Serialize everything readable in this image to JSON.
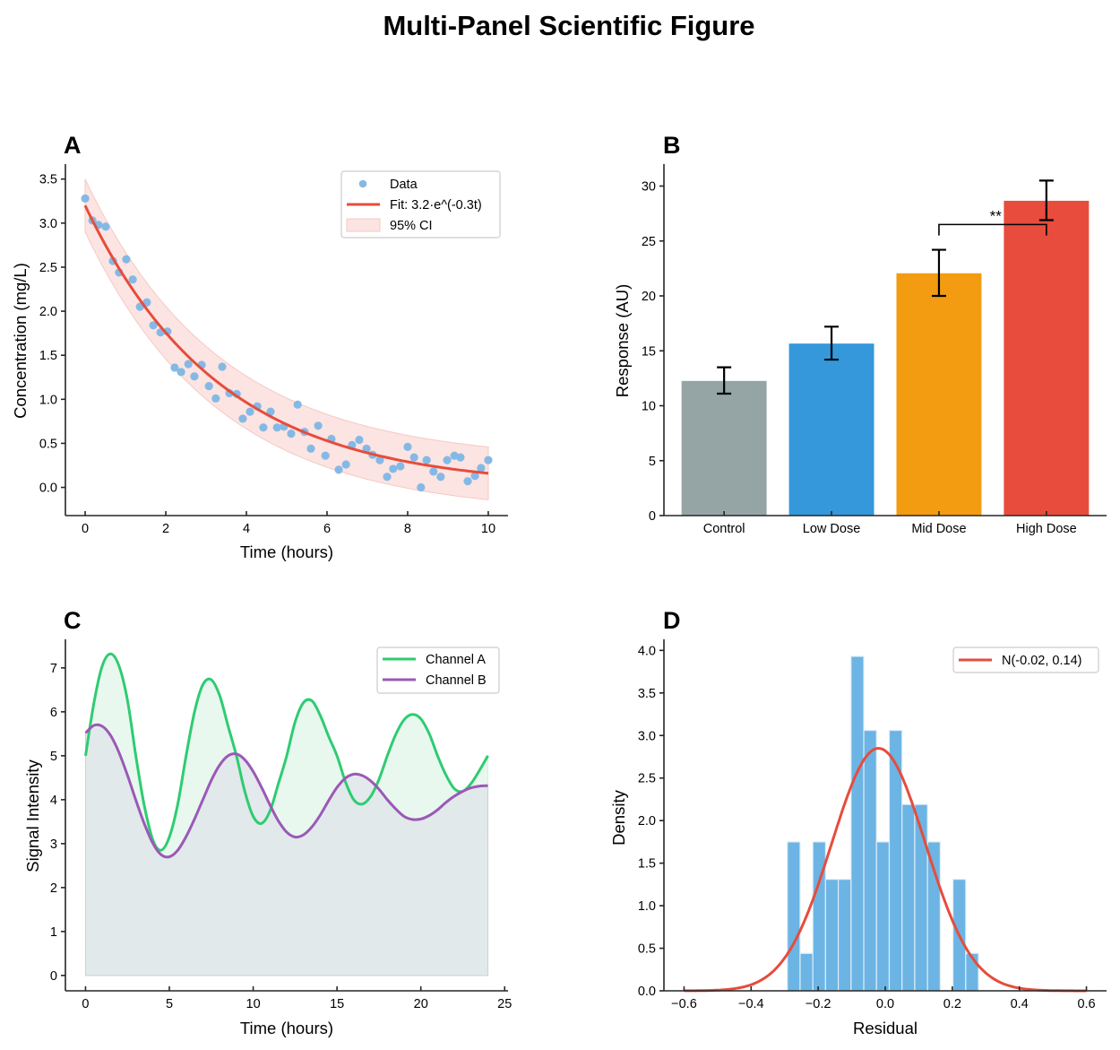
{
  "figure": {
    "suptitle": "Multi-Panel Scientific Figure"
  },
  "chart_data": [
    {
      "panel": "A",
      "type": "scatter",
      "title": "A",
      "xlabel": "Time (hours)",
      "ylabel": "Concentration (mg/L)",
      "xlim": [
        -0.49,
        10.49
      ],
      "ylim": [
        -0.32,
        3.67
      ],
      "xticks": [
        0,
        2,
        4,
        6,
        8,
        10
      ],
      "xtick_labels": [
        "0",
        "2",
        "4",
        "6",
        "8",
        "10"
      ],
      "yticks": [
        0.0,
        0.5,
        1.0,
        1.5,
        2.0,
        2.5,
        3.0,
        3.5
      ],
      "ytick_labels": [
        "0.0",
        "0.5",
        "1.0",
        "1.5",
        "2.0",
        "2.5",
        "3.0",
        "3.5"
      ],
      "grid": false,
      "legend": {
        "placement": "upper-right",
        "entries": [
          "Data",
          "Fit: 3.2·e^(-0.3t)",
          "95% CI"
        ]
      },
      "colors": {
        "data": "#85b9e5",
        "fit": "#e74c3c",
        "ci": "#fbe4e2"
      },
      "fit": {
        "a": 3.2,
        "k": 0.3,
        "x_range": [
          0,
          10
        ]
      },
      "ci_half_width": 0.3,
      "points": [
        [
          0.0,
          3.28
        ],
        [
          0.18,
          3.03
        ],
        [
          0.33,
          2.98
        ],
        [
          0.51,
          2.96
        ],
        [
          0.69,
          2.57
        ],
        [
          0.84,
          2.44
        ],
        [
          1.02,
          2.59
        ],
        [
          1.18,
          2.36
        ],
        [
          1.36,
          2.05
        ],
        [
          1.53,
          2.1
        ],
        [
          1.69,
          1.84
        ],
        [
          1.87,
          1.76
        ],
        [
          2.04,
          1.77
        ],
        [
          2.22,
          1.36
        ],
        [
          2.38,
          1.31
        ],
        [
          2.56,
          1.4
        ],
        [
          2.71,
          1.26
        ],
        [
          2.89,
          1.39
        ],
        [
          3.07,
          1.15
        ],
        [
          3.24,
          1.01
        ],
        [
          3.4,
          1.37
        ],
        [
          3.58,
          1.07
        ],
        [
          3.76,
          1.06
        ],
        [
          3.91,
          0.78
        ],
        [
          4.09,
          0.86
        ],
        [
          4.27,
          0.92
        ],
        [
          4.42,
          0.68
        ],
        [
          4.6,
          0.86
        ],
        [
          4.76,
          0.68
        ],
        [
          4.93,
          0.69
        ],
        [
          5.11,
          0.61
        ],
        [
          5.27,
          0.94
        ],
        [
          5.44,
          0.63
        ],
        [
          5.6,
          0.44
        ],
        [
          5.78,
          0.7
        ],
        [
          5.96,
          0.36
        ],
        [
          6.11,
          0.55
        ],
        [
          6.29,
          0.2
        ],
        [
          6.47,
          0.26
        ],
        [
          6.62,
          0.48
        ],
        [
          6.8,
          0.54
        ],
        [
          6.98,
          0.44
        ],
        [
          7.13,
          0.37
        ],
        [
          7.31,
          0.31
        ],
        [
          7.49,
          0.12
        ],
        [
          7.64,
          0.21
        ],
        [
          7.82,
          0.24
        ],
        [
          8.0,
          0.46
        ],
        [
          8.16,
          0.34
        ],
        [
          8.33,
          0.0
        ],
        [
          8.47,
          0.31
        ],
        [
          8.64,
          0.18
        ],
        [
          8.82,
          0.12
        ],
        [
          8.98,
          0.31
        ],
        [
          9.16,
          0.36
        ],
        [
          9.31,
          0.34
        ],
        [
          9.49,
          0.07
        ],
        [
          9.67,
          0.13
        ],
        [
          9.82,
          0.22
        ],
        [
          10.0,
          0.31
        ]
      ]
    },
    {
      "panel": "B",
      "type": "bar",
      "title": "B",
      "xlabel": "",
      "ylabel": "Response (AU)",
      "ylim": [
        0,
        32
      ],
      "yticks": [
        0,
        5,
        10,
        15,
        20,
        25,
        30
      ],
      "ytick_labels": [
        "0",
        "5",
        "10",
        "15",
        "20",
        "25",
        "30"
      ],
      "grid": false,
      "categories": [
        "Control",
        "Low Dose",
        "Mid Dose",
        "High Dose"
      ],
      "values": [
        12.3,
        15.7,
        22.1,
        28.7
      ],
      "errors": [
        1.2,
        1.5,
        2.1,
        1.8
      ],
      "colors": [
        "#95a5a6",
        "#3498db",
        "#f39c12",
        "#e74c3c"
      ],
      "annotation": {
        "text": "**",
        "from_category": "Mid Dose",
        "to_category": "High Dose",
        "bracket_y": 26.5,
        "bracket_drop": 1.0
      }
    },
    {
      "panel": "C",
      "type": "area",
      "title": "C",
      "xlabel": "Time (hours)",
      "ylabel": "Signal Intensity",
      "xlim": [
        -1.2,
        25.2
      ],
      "ylim": [
        -0.35,
        7.65
      ],
      "xticks": [
        0,
        5,
        10,
        15,
        20,
        25
      ],
      "xtick_labels": [
        "0",
        "5",
        "10",
        "15",
        "20",
        "25"
      ],
      "yticks": [
        0,
        1,
        2,
        3,
        4,
        5,
        6,
        7
      ],
      "ytick_labels": [
        "0",
        "1",
        "2",
        "3",
        "4",
        "5",
        "6",
        "7"
      ],
      "grid": false,
      "legend": {
        "placement": "upper-right",
        "entries": [
          "Channel A",
          "Channel B"
        ]
      },
      "x": [
        0,
        0.5,
        1,
        1.5,
        2,
        2.5,
        3,
        3.5,
        4,
        4.5,
        5,
        5.5,
        6,
        6.5,
        7,
        7.5,
        8,
        8.5,
        9,
        9.5,
        10,
        10.5,
        11,
        11.5,
        12,
        12.5,
        13,
        13.5,
        14,
        14.5,
        15,
        15.5,
        16,
        16.5,
        17,
        17.5,
        18,
        18.5,
        19,
        19.5,
        20,
        20.5,
        21,
        21.5,
        22,
        22.5,
        23,
        23.5,
        24
      ],
      "series": [
        {
          "name": "Channel A",
          "color": "#2ecc71",
          "fill": "#e8f8ef",
          "values": [
            5.0,
            6.2,
            7.05,
            7.32,
            7.04,
            6.27,
            5.0,
            3.88,
            3.1,
            2.85,
            3.15,
            3.9,
            5.0,
            6.0,
            6.62,
            6.73,
            6.37,
            5.68,
            5.0,
            4.19,
            3.62,
            3.46,
            3.74,
            4.36,
            5.0,
            5.77,
            6.21,
            6.25,
            5.92,
            5.44,
            5.0,
            4.41,
            4.0,
            3.9,
            4.07,
            4.46,
            5.0,
            5.48,
            5.82,
            5.94,
            5.84,
            5.5,
            5.0,
            4.56,
            4.25,
            4.19,
            4.37,
            4.67,
            5.0
          ]
        },
        {
          "name": "Channel B",
          "color": "#9b59b6",
          "fill": "#dfe6e9",
          "values": [
            5.52,
            5.69,
            5.67,
            5.46,
            5.07,
            4.56,
            3.99,
            3.46,
            3.02,
            2.75,
            2.7,
            2.85,
            3.16,
            3.56,
            4.0,
            4.44,
            4.79,
            5.0,
            5.04,
            4.91,
            4.64,
            4.28,
            3.88,
            3.52,
            3.26,
            3.15,
            3.2,
            3.38,
            3.65,
            3.98,
            4.28,
            4.49,
            4.58,
            4.55,
            4.43,
            4.24,
            4.0,
            3.79,
            3.62,
            3.55,
            3.56,
            3.64,
            3.77,
            3.94,
            4.08,
            4.19,
            4.27,
            4.31,
            4.32
          ]
        }
      ]
    },
    {
      "panel": "D",
      "type": "bar",
      "subtype": "histogram",
      "title": "D",
      "xlabel": "Residual",
      "ylabel": "Density",
      "xlim": [
        -0.66,
        0.66
      ],
      "ylim": [
        0,
        4.13
      ],
      "xticks": [
        -0.6,
        -0.4,
        -0.2,
        0.0,
        0.2,
        0.4,
        0.6
      ],
      "xtick_labels": [
        "−0.6",
        "−0.4",
        "−0.2",
        "0.0",
        "0.2",
        "0.4",
        "0.6"
      ],
      "yticks": [
        0.0,
        0.5,
        1.0,
        1.5,
        2.0,
        2.5,
        3.0,
        3.5,
        4.0
      ],
      "ytick_labels": [
        "0.0",
        "0.5",
        "1.0",
        "1.5",
        "2.0",
        "2.5",
        "3.0",
        "3.5",
        "4.0"
      ],
      "grid": false,
      "bin_edges": [
        -0.292,
        -0.254,
        -0.216,
        -0.178,
        -0.14,
        -0.102,
        -0.064,
        -0.026,
        0.012,
        0.05,
        0.088,
        0.126,
        0.164,
        0.202,
        0.24,
        0.278
      ],
      "density": [
        1.75,
        0.44,
        1.75,
        1.31,
        1.31,
        3.93,
        3.06,
        1.75,
        3.06,
        2.19,
        2.19,
        1.75,
        0.0,
        1.31,
        0.44
      ],
      "bar_color": "#6cb4e4",
      "normal_fit": {
        "label": "N(-0.02, 0.14)",
        "mean": -0.02,
        "std": 0.14,
        "color": "#e74c3c",
        "x_range": [
          -0.6,
          0.6
        ]
      },
      "legend": {
        "placement": "upper-right",
        "entries": [
          "N(-0.02, 0.14)"
        ]
      }
    }
  ]
}
